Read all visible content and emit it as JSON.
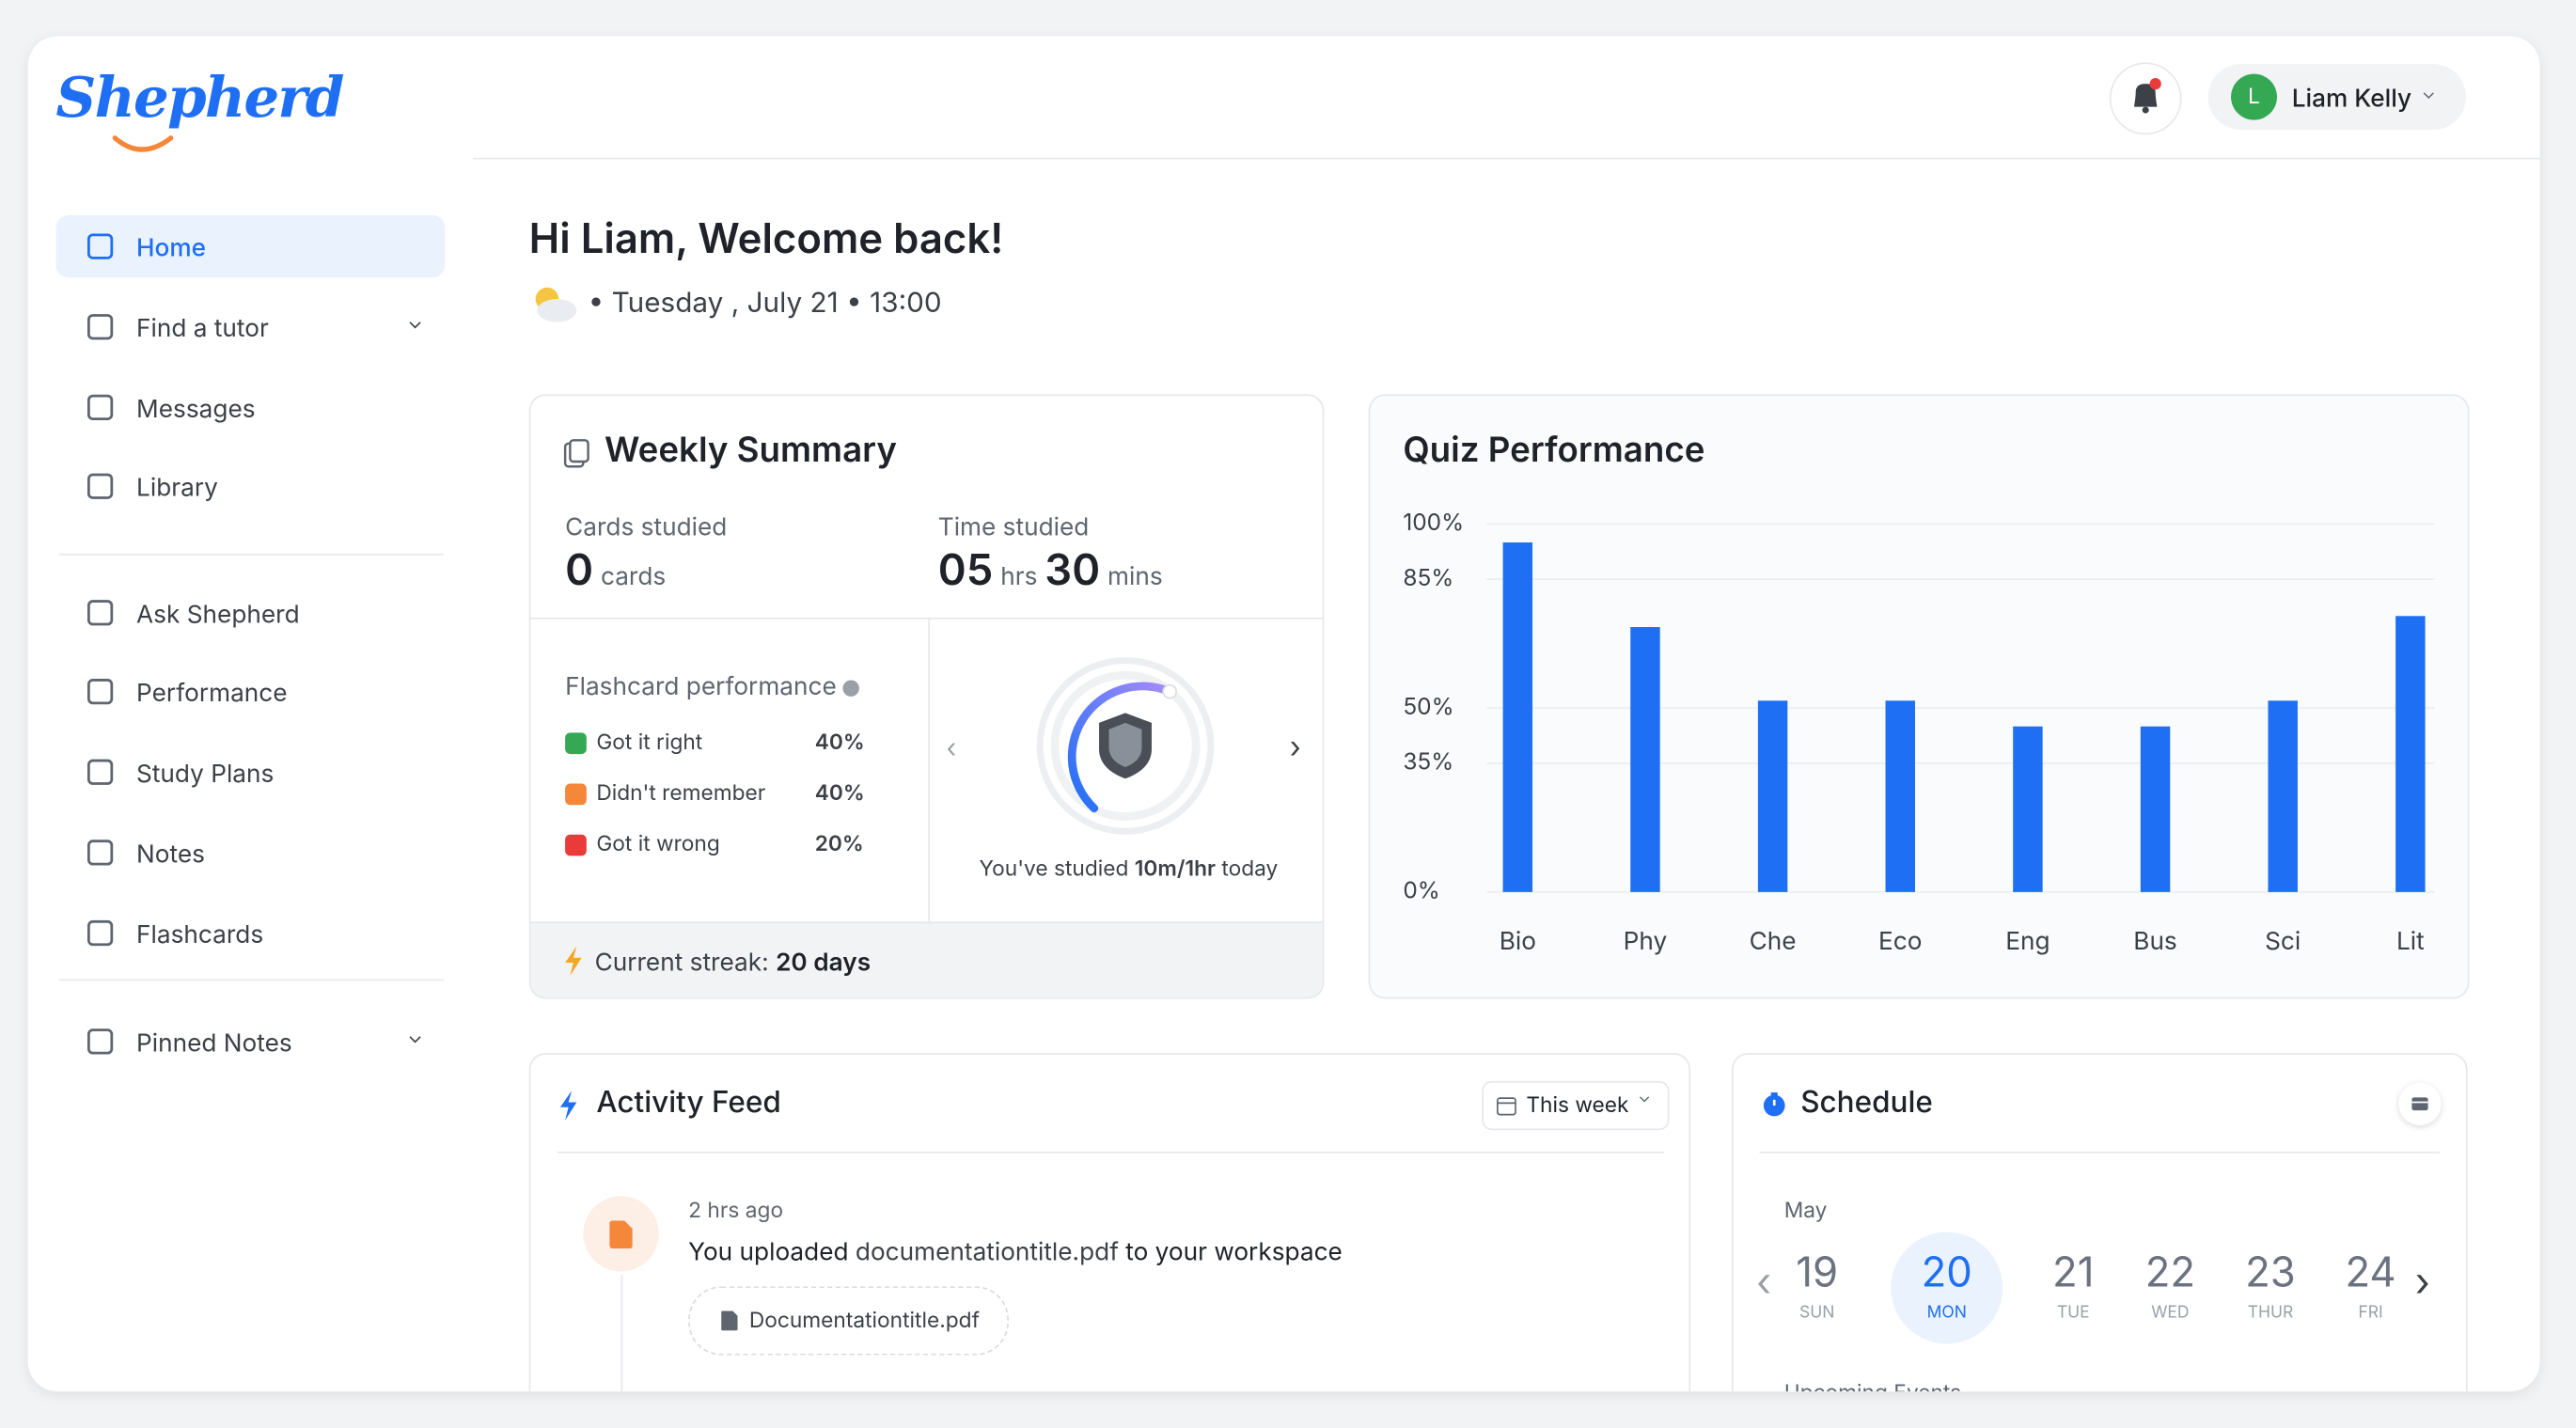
{
  "brand": "Shepherd",
  "user": {
    "initial": "L",
    "name": "Liam Kelly"
  },
  "nav": {
    "main": [
      "Home",
      "Find a tutor",
      "Messages",
      "Library"
    ],
    "tools": [
      "Ask Shepherd",
      "Performance",
      "Study Plans",
      "Notes",
      "Flashcards"
    ],
    "pinned": "Pinned Notes"
  },
  "greeting": {
    "title": "Hi Liam, Welcome back!",
    "date": "Tuesday , July 21",
    "time": "13:00"
  },
  "weekly_summary": {
    "title": "Weekly Summary",
    "cards_label": "Cards studied",
    "cards_value": "0",
    "cards_unit": "cards",
    "time_label": "Time studied",
    "hours": "05",
    "hours_unit": "hrs",
    "minutes": "30",
    "minutes_unit": "mins",
    "flashcard_title": "Flashcard performance",
    "legend": [
      {
        "label": "Got it right",
        "value": "40%",
        "color": "#34a853"
      },
      {
        "label": "Didn't remember",
        "value": "40%",
        "color": "#f5873a"
      },
      {
        "label": "Got it wrong",
        "value": "20%",
        "color": "#ea3b3b"
      }
    ],
    "studied_prefix": "You've studied",
    "studied_amount": "10m/1hr",
    "studied_suffix": "today",
    "streak_label": "Current streak:",
    "streak_value": "20 days"
  },
  "chart_data": {
    "type": "bar",
    "title": "Quiz Performance",
    "categories": [
      "Bio",
      "Phy",
      "Che",
      "Eco",
      "Eng",
      "Bus",
      "Sci",
      "Lit"
    ],
    "values": [
      95,
      72,
      52,
      52,
      45,
      45,
      52,
      75
    ],
    "color": "#1f6ff5",
    "ylim": [
      0,
      100
    ],
    "yticks": [
      {
        "value": 0,
        "label": "0%"
      },
      {
        "value": 35,
        "label": "35%"
      },
      {
        "value": 50,
        "label": "50%"
      },
      {
        "value": 85,
        "label": "85%"
      },
      {
        "value": 100,
        "label": "100%"
      }
    ],
    "grid": true
  },
  "activity": {
    "title": "Activity Feed",
    "filter": "This week",
    "items": [
      {
        "time": "2 hrs ago",
        "prefix": "You uploaded",
        "file": "documentationtitle.pdf",
        "suffix": "to your workspace",
        "attachment": "Documentationtitle.pdf"
      }
    ]
  },
  "schedule": {
    "title": "Schedule",
    "month": "May",
    "days": [
      {
        "num": "19",
        "name": "SUN"
      },
      {
        "num": "20",
        "name": "MON"
      },
      {
        "num": "21",
        "name": "TUE"
      },
      {
        "num": "22",
        "name": "WED"
      },
      {
        "num": "23",
        "name": "THUR"
      },
      {
        "num": "24",
        "name": "FRI"
      }
    ],
    "upcoming": "Upcoming Events"
  }
}
